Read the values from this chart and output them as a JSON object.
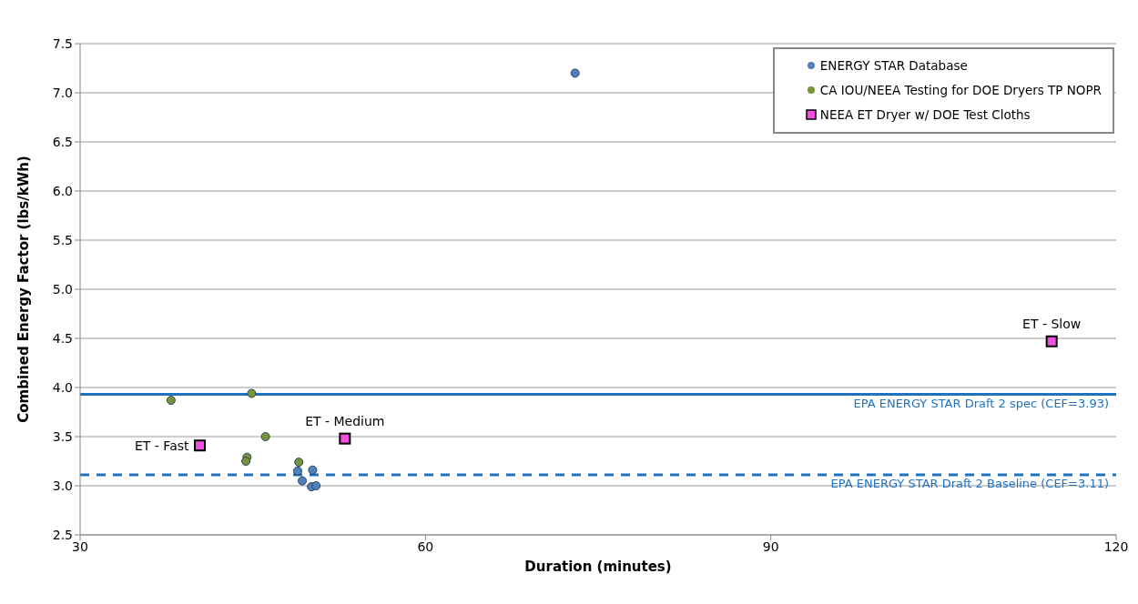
{
  "chart_data": {
    "type": "scatter",
    "xlabel": "Duration (minutes)",
    "ylabel": "Combined Energy Factor (lbs/kWh)",
    "xlim": [
      30,
      120
    ],
    "xticks": [
      30,
      60,
      90,
      120
    ],
    "ylim": [
      2.5,
      7.5
    ],
    "yticks": [
      2.5,
      {
        "value": 3,
        "label": "3.0"
      },
      3.5,
      {
        "value": 4,
        "label": "4.0"
      },
      4.5,
      {
        "value": 5,
        "label": "5.0"
      },
      5.5,
      {
        "value": 6,
        "label": "6.0"
      },
      6.5,
      {
        "value": 7,
        "label": "7.0"
      },
      7.5
    ],
    "grid": "y",
    "legend": "top right",
    "series": [
      {
        "name": "ENERGY STAR Database",
        "color": "#4f81bd",
        "marker": "circle",
        "x": [
          73.0,
          48.9,
          50.2,
          49.3,
          50.1,
          50.5
        ],
        "values": [
          7.2,
          3.15,
          3.16,
          3.05,
          2.99,
          3.0
        ]
      },
      {
        "name": "CA IOU/NEEA Testing for DOE Dryers TP NOPR",
        "color": "#77933c",
        "marker": "circle",
        "x": [
          37.9,
          44.9,
          46.1,
          44.5,
          44.4,
          49.0
        ],
        "values": [
          3.87,
          3.94,
          3.5,
          3.29,
          3.25,
          3.24
        ]
      },
      {
        "name": "NEEA ET Dryer w/ DOE Test Cloths",
        "color": "#f050e0",
        "marker": "square",
        "x": [
          40.4,
          53.0,
          114.4
        ],
        "values": [
          3.41,
          3.48,
          4.47
        ]
      }
    ],
    "ref_lines": [
      {
        "axis": "y",
        "value": 3.93,
        "label": "EPA ENERGY STAR Draft 2 spec (CEF=3.93)",
        "color": "#1f72c0",
        "line_style": "solid"
      },
      {
        "axis": "y",
        "value": 3.11,
        "label": "EPA ENERGY STAR Draft 2 Baseline (CEF=3.11)",
        "color": "#1f72c0",
        "line_style": "dashed"
      }
    ],
    "annotations": [
      {
        "text": "ET - Fast",
        "x": 40.4,
        "y": 3.41
      },
      {
        "text": "ET - Medium",
        "x": 53.0,
        "y": 3.48
      },
      {
        "text": "ET - Slow",
        "x": 114.4,
        "y": 4.47
      }
    ]
  }
}
